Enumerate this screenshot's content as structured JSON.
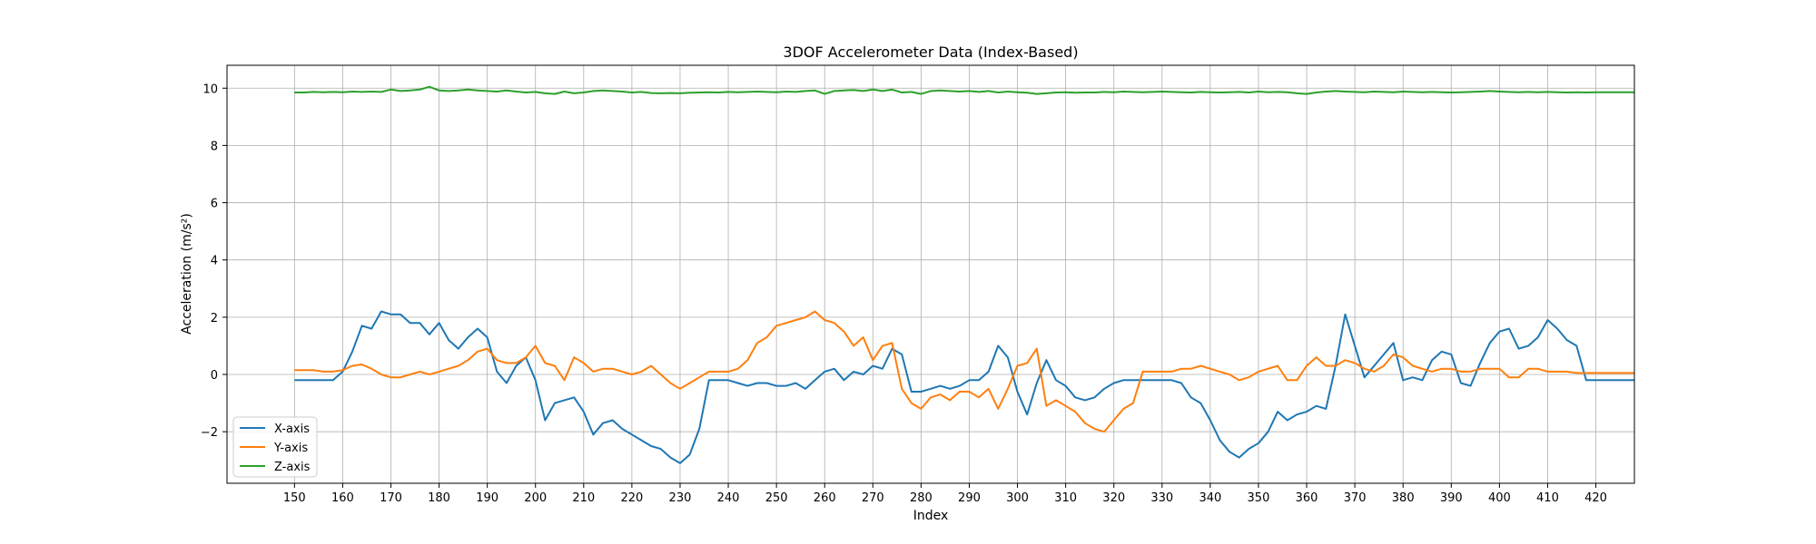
{
  "chart_data": {
    "type": "line",
    "title": "3DOF Accelerometer Data (Index-Based)",
    "xlabel": "Index",
    "ylabel": "Acceleration (m/s²)",
    "xlim": [
      136,
      428
    ],
    "ylim": [
      -3.8,
      10.8
    ],
    "xticks": [
      150,
      160,
      170,
      180,
      190,
      200,
      210,
      220,
      230,
      240,
      250,
      260,
      270,
      280,
      290,
      300,
      310,
      320,
      330,
      340,
      350,
      360,
      370,
      380,
      390,
      400,
      410,
      420
    ],
    "yticks": [
      -2,
      0,
      2,
      4,
      6,
      8,
      10
    ],
    "grid": true,
    "legend_position": "lower left",
    "x": [
      150,
      152,
      154,
      156,
      158,
      160,
      162,
      164,
      166,
      168,
      170,
      172,
      174,
      176,
      178,
      180,
      182,
      184,
      186,
      188,
      190,
      192,
      194,
      196,
      198,
      200,
      202,
      204,
      206,
      208,
      210,
      212,
      214,
      216,
      218,
      220,
      222,
      224,
      226,
      228,
      230,
      232,
      234,
      236,
      238,
      240,
      242,
      244,
      246,
      248,
      250,
      252,
      254,
      256,
      258,
      260,
      262,
      264,
      266,
      268,
      270,
      272,
      274,
      276,
      278,
      280,
      282,
      284,
      286,
      288,
      290,
      292,
      294,
      296,
      298,
      300,
      302,
      304,
      306,
      308,
      310,
      312,
      314,
      316,
      318,
      320,
      322,
      324,
      326,
      328,
      330,
      332,
      334,
      336,
      338,
      340,
      342,
      344,
      346,
      348,
      350,
      352,
      354,
      356,
      358,
      360,
      362,
      364,
      366,
      368,
      370,
      372,
      374,
      376,
      378,
      380,
      382,
      384,
      386,
      388,
      390,
      392,
      394,
      396,
      398,
      400,
      402,
      404,
      406,
      408,
      410,
      412,
      414,
      416,
      418,
      420,
      422,
      424,
      426,
      428
    ],
    "series": [
      {
        "name": "X-axis",
        "color": "#1f77b4",
        "values": [
          -0.2,
          -0.2,
          -0.2,
          -0.2,
          -0.2,
          0.1,
          0.8,
          1.7,
          1.6,
          2.2,
          2.1,
          2.1,
          1.8,
          1.8,
          1.4,
          1.8,
          1.2,
          0.9,
          1.3,
          1.6,
          1.3,
          0.1,
          -0.3,
          0.3,
          0.6,
          -0.2,
          -1.6,
          -1.0,
          -0.9,
          -0.8,
          -1.3,
          -2.1,
          -1.7,
          -1.6,
          -1.9,
          -2.1,
          -2.3,
          -2.5,
          -2.6,
          -2.9,
          -3.1,
          -2.8,
          -1.9,
          -0.2,
          -0.2,
          -0.2,
          -0.3,
          -0.4,
          -0.3,
          -0.3,
          -0.4,
          -0.4,
          -0.3,
          -0.5,
          -0.2,
          0.1,
          0.2,
          -0.2,
          0.1,
          0.0,
          0.3,
          0.2,
          0.9,
          0.7,
          -0.6,
          -0.6,
          -0.5,
          -0.4,
          -0.5,
          -0.4,
          -0.2,
          -0.2,
          0.1,
          1.0,
          0.6,
          -0.6,
          -1.4,
          -0.3,
          0.5,
          -0.2,
          -0.4,
          -0.8,
          -0.9,
          -0.8,
          -0.5,
          -0.3,
          -0.2,
          -0.2,
          -0.2,
          -0.2,
          -0.2,
          -0.2,
          -0.3,
          -0.8,
          -1.0,
          -1.6,
          -2.3,
          -2.7,
          -2.9,
          -2.6,
          -2.4,
          -2.0,
          -1.3,
          -1.6,
          -1.4,
          -1.3,
          -1.1,
          -1.2,
          0.3,
          2.1,
          1.0,
          -0.1,
          0.3,
          0.7,
          1.1,
          -0.2,
          -0.1,
          -0.2,
          0.5,
          0.8,
          0.7,
          -0.3,
          -0.4,
          0.4,
          1.1,
          1.5,
          1.6,
          0.9,
          1.0,
          1.3,
          1.9,
          1.6,
          1.2,
          1.0,
          -0.2,
          -0.2,
          -0.2,
          -0.2,
          -0.2,
          -0.2
        ]
      },
      {
        "name": "Y-axis",
        "color": "#ff7f0e",
        "values": [
          0.15,
          0.15,
          0.15,
          0.1,
          0.1,
          0.15,
          0.3,
          0.35,
          0.2,
          0.0,
          -0.1,
          -0.1,
          0.0,
          0.1,
          0.0,
          0.1,
          0.2,
          0.3,
          0.5,
          0.8,
          0.9,
          0.5,
          0.4,
          0.4,
          0.6,
          1.0,
          0.4,
          0.3,
          -0.2,
          0.6,
          0.4,
          0.1,
          0.2,
          0.2,
          0.1,
          0.0,
          0.1,
          0.3,
          0.0,
          -0.3,
          -0.5,
          -0.3,
          -0.1,
          0.1,
          0.1,
          0.1,
          0.2,
          0.5,
          1.1,
          1.3,
          1.7,
          1.8,
          1.9,
          2.0,
          2.2,
          1.9,
          1.8,
          1.5,
          1.0,
          1.3,
          0.5,
          1.0,
          1.1,
          -0.5,
          -1.0,
          -1.2,
          -0.8,
          -0.7,
          -0.9,
          -0.6,
          -0.6,
          -0.8,
          -0.5,
          -1.2,
          -0.5,
          0.3,
          0.4,
          0.9,
          -1.1,
          -0.9,
          -1.1,
          -1.3,
          -1.7,
          -1.9,
          -2.0,
          -1.6,
          -1.2,
          -1.0,
          0.1,
          0.1,
          0.1,
          0.1,
          0.2,
          0.2,
          0.3,
          0.2,
          0.1,
          0.0,
          -0.2,
          -0.1,
          0.1,
          0.2,
          0.3,
          -0.2,
          -0.2,
          0.3,
          0.6,
          0.3,
          0.3,
          0.5,
          0.4,
          0.2,
          0.1,
          0.3,
          0.7,
          0.6,
          0.3,
          0.2,
          0.1,
          0.2,
          0.2,
          0.1,
          0.1,
          0.2,
          0.2,
          0.2,
          -0.1,
          -0.1,
          0.2,
          0.2,
          0.1,
          0.1,
          0.1,
          0.05,
          0.05,
          0.05,
          0.05,
          0.05,
          0.05,
          0.05
        ]
      },
      {
        "name": "Z-axis",
        "color": "#2ca02c",
        "values": [
          9.85,
          9.85,
          9.87,
          9.86,
          9.87,
          9.86,
          9.88,
          9.87,
          9.88,
          9.87,
          9.95,
          9.9,
          9.92,
          9.95,
          10.05,
          9.92,
          9.9,
          9.92,
          9.95,
          9.92,
          9.9,
          9.88,
          9.92,
          9.88,
          9.85,
          9.87,
          9.82,
          9.8,
          9.88,
          9.82,
          9.85,
          9.9,
          9.92,
          9.9,
          9.88,
          9.85,
          9.87,
          9.83,
          9.82,
          9.83,
          9.82,
          9.84,
          9.85,
          9.86,
          9.85,
          9.87,
          9.86,
          9.87,
          9.88,
          9.87,
          9.86,
          9.88,
          9.87,
          9.9,
          9.92,
          9.8,
          9.9,
          9.92,
          9.94,
          9.9,
          9.95,
          9.9,
          9.95,
          9.85,
          9.87,
          9.8,
          9.9,
          9.92,
          9.9,
          9.88,
          9.9,
          9.87,
          9.9,
          9.85,
          9.88,
          9.86,
          9.84,
          9.8,
          9.82,
          9.85,
          9.86,
          9.84,
          9.85,
          9.85,
          9.87,
          9.86,
          9.88,
          9.87,
          9.86,
          9.87,
          9.88,
          9.87,
          9.86,
          9.85,
          9.87,
          9.86,
          9.85,
          9.86,
          9.87,
          9.85,
          9.88,
          9.86,
          9.87,
          9.86,
          9.82,
          9.8,
          9.85,
          9.88,
          9.9,
          9.88,
          9.87,
          9.86,
          9.88,
          9.87,
          9.86,
          9.88,
          9.87,
          9.86,
          9.87,
          9.86,
          9.85,
          9.86,
          9.87,
          9.88,
          9.9,
          9.88,
          9.87,
          9.86,
          9.87,
          9.86,
          9.87,
          9.86,
          9.85,
          9.86,
          9.85,
          9.86,
          9.86,
          9.86,
          9.86,
          9.86
        ]
      }
    ]
  }
}
